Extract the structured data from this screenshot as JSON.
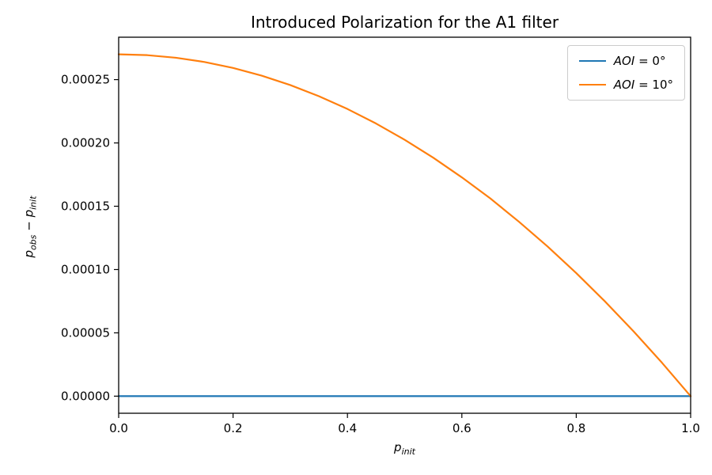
{
  "figure": {
    "background": "#ffffff"
  },
  "chart_data": {
    "type": "line",
    "title": "Introduced Polarization for the A1 filter",
    "xlabel": {
      "var": "p",
      "sub": "init"
    },
    "ylabel": {
      "var1": "p",
      "sub1": "obs",
      "minus": " − ",
      "var2": "p",
      "sub2": "init"
    },
    "xlim": [
      0.0,
      1.0
    ],
    "ylim": [
      -1.35e-05,
      0.0002835
    ],
    "grid": false,
    "legend_position": "upper right",
    "xticks": {
      "values": [
        0.0,
        0.2,
        0.4,
        0.6,
        0.8,
        1.0
      ],
      "labels": [
        "0.0",
        "0.2",
        "0.4",
        "0.6",
        "0.8",
        "1.0"
      ]
    },
    "yticks": {
      "values": [
        0.0,
        5e-05,
        0.0001,
        0.00015,
        0.0002,
        0.00025
      ],
      "labels": [
        "0.00000",
        "0.00005",
        "0.00010",
        "0.00015",
        "0.00020",
        "0.00025"
      ]
    },
    "x": [
      0.0,
      0.05,
      0.1,
      0.15,
      0.2,
      0.25,
      0.3,
      0.35,
      0.4,
      0.45,
      0.5,
      0.55,
      0.6,
      0.65,
      0.7,
      0.75,
      0.8,
      0.85,
      0.9,
      0.95,
      1.0
    ],
    "series": [
      {
        "name": "AOI = 0°",
        "legend_var": "AOI",
        "legend_rest": " = 0°",
        "color": "#1f77b4",
        "values": [
          0.0,
          0.0,
          0.0,
          0.0,
          0.0,
          0.0,
          0.0,
          0.0,
          0.0,
          0.0,
          0.0,
          0.0,
          0.0,
          0.0,
          0.0,
          0.0,
          0.0,
          0.0,
          0.0,
          0.0,
          0.0
        ]
      },
      {
        "name": "AOI = 10°",
        "legend_var": "AOI",
        "legend_rest": " = 10°",
        "color": "#ff7f0e",
        "values": [
          0.00027,
          0.00026933,
          0.0002673,
          0.00026393,
          0.0002592,
          0.00025313,
          0.0002457,
          0.00023693,
          0.0002268,
          0.00021533,
          0.0002025,
          0.00018833,
          0.0001728,
          0.00015608,
          0.0001377,
          0.00011813,
          9.72e-05,
          7.493e-05,
          5.13e-05,
          2.633e-05,
          0.0
        ]
      }
    ]
  }
}
